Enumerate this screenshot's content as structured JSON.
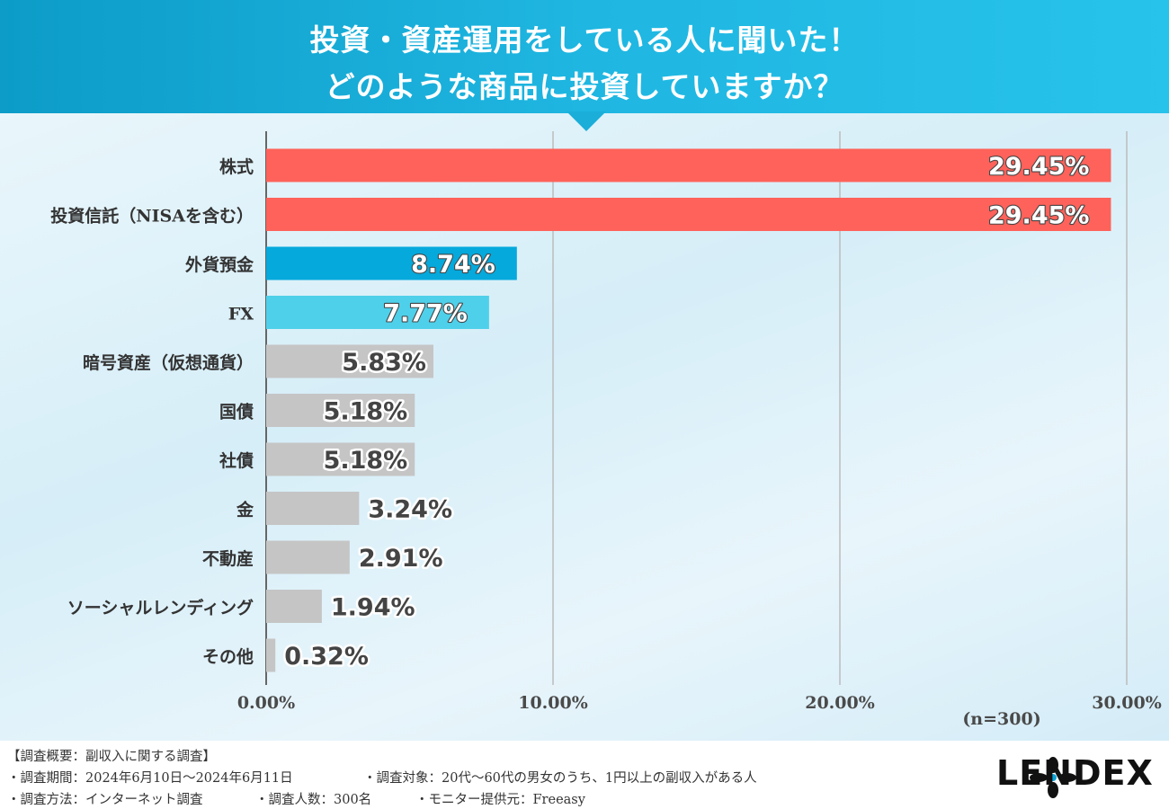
{
  "header": {
    "title_line1": "投資・資産運用をしている人に聞いた！",
    "title_line2": "どのような商品に投資していますか？"
  },
  "chart_data": {
    "type": "bar",
    "orientation": "horizontal",
    "title": "投資・資産運用をしている人に聞いた！ どのような商品に投資していますか？",
    "categories": [
      "株式",
      "投資信託（NISAを含む）",
      "外貨預金",
      "FX",
      "暗号資産（仮想通貨）",
      "国債",
      "社債",
      "金",
      "不動産",
      "ソーシャルレンディング",
      "その他"
    ],
    "values": [
      29.45,
      29.45,
      8.74,
      7.77,
      5.83,
      5.18,
      5.18,
      3.24,
      2.91,
      1.94,
      0.32
    ],
    "value_labels": [
      "29.45%",
      "29.45%",
      "8.74%",
      "7.77%",
      "5.83%",
      "5.18%",
      "5.18%",
      "3.24%",
      "2.91%",
      "1.94%",
      "0.32%"
    ],
    "bar_colors": [
      "#fe625a",
      "#fe625a",
      "#05a9dc",
      "#4ed0ea",
      "#c5c5c5",
      "#c5c5c5",
      "#c5c5c5",
      "#c5c5c5",
      "#c5c5c5",
      "#c5c5c5",
      "#c5c5c5"
    ],
    "x_ticks": [
      0,
      10,
      20,
      30
    ],
    "x_tick_labels": [
      "0.00%",
      "10.00%",
      "20.00%",
      "30.00%"
    ],
    "xlim": [
      0,
      30
    ],
    "grid": true,
    "sample_note": "(n=300)"
  },
  "footer": {
    "overview": "【調査概要：副収入に関する調査】",
    "period": "・調査期間：2024年6月10日〜2024年6月11日",
    "target": "・調査対象：20代〜60代の男女のうち、1円以上の副収入がある人",
    "method": "・調査方法：インターネット調査",
    "count": "・調査人数：300名",
    "provider": "・モニター提供元：Freeasy"
  },
  "logo": {
    "text": "LENDEX",
    "color": "#111111"
  }
}
